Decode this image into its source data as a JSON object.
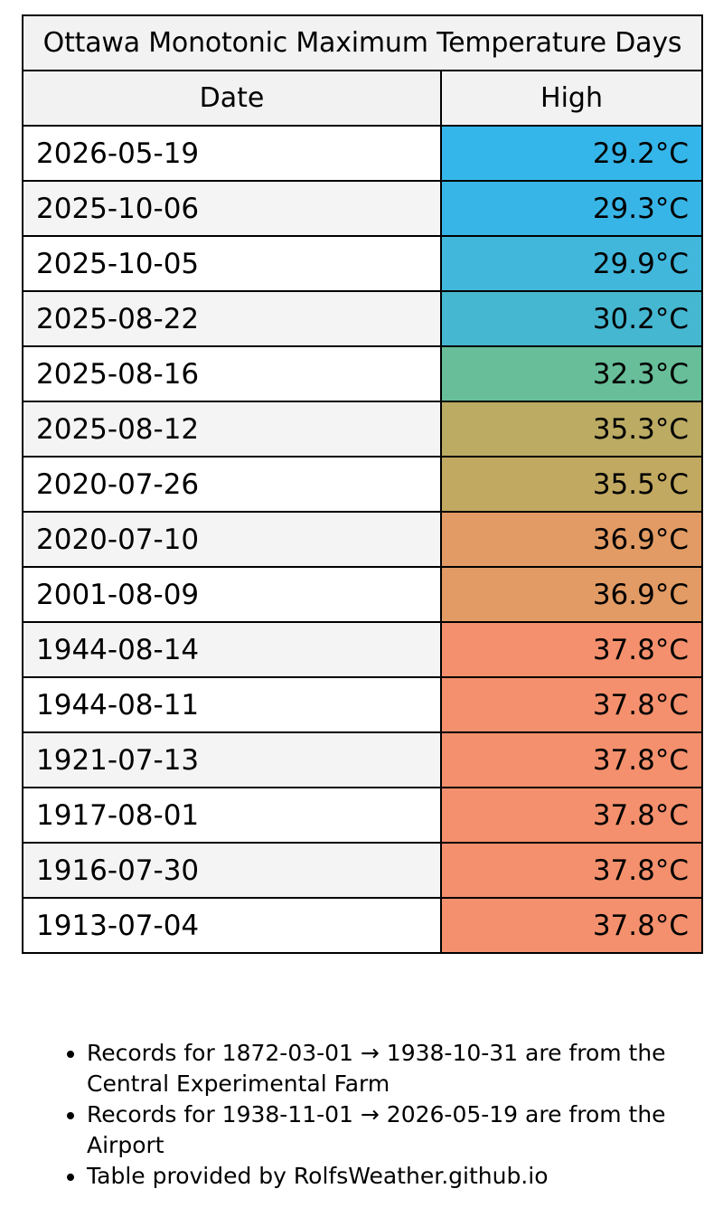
{
  "table": {
    "title": "Ottawa Monotonic Maximum Temperature Days",
    "headers": {
      "date": "Date",
      "high": "High"
    },
    "rows": [
      {
        "date": "2026-05-19",
        "high": "29.2°C",
        "color": "#35b6ea"
      },
      {
        "date": "2025-10-06",
        "high": "29.3°C",
        "color": "#38b5e7"
      },
      {
        "date": "2025-10-05",
        "high": "29.9°C",
        "color": "#41b7dc"
      },
      {
        "date": "2025-08-22",
        "high": "30.2°C",
        "color": "#45b7d1"
      },
      {
        "date": "2025-08-16",
        "high": "32.3°C",
        "color": "#67be98"
      },
      {
        "date": "2025-08-12",
        "high": "35.3°C",
        "color": "#bbab63"
      },
      {
        "date": "2020-07-26",
        "high": "35.5°C",
        "color": "#c1a961"
      },
      {
        "date": "2020-07-10",
        "high": "36.9°C",
        "color": "#e29b64"
      },
      {
        "date": "2001-08-09",
        "high": "36.9°C",
        "color": "#e29b64"
      },
      {
        "date": "1944-08-14",
        "high": "37.8°C",
        "color": "#f4906d"
      },
      {
        "date": "1944-08-11",
        "high": "37.8°C",
        "color": "#f4906d"
      },
      {
        "date": "1921-07-13",
        "high": "37.8°C",
        "color": "#f4906d"
      },
      {
        "date": "1917-08-01",
        "high": "37.8°C",
        "color": "#f4906d"
      },
      {
        "date": "1916-07-30",
        "high": "37.8°C",
        "color": "#f4906d"
      },
      {
        "date": "1913-07-04",
        "high": "37.8°C",
        "color": "#f4906d"
      }
    ]
  },
  "notes": [
    "Records for 1872-03-01 → 1938-10-31 are from the Central Experimental Farm",
    "Records for 1938-11-01 → 2026-05-19 are from the Airport",
    "Table provided by RolfsWeather.github.io"
  ]
}
